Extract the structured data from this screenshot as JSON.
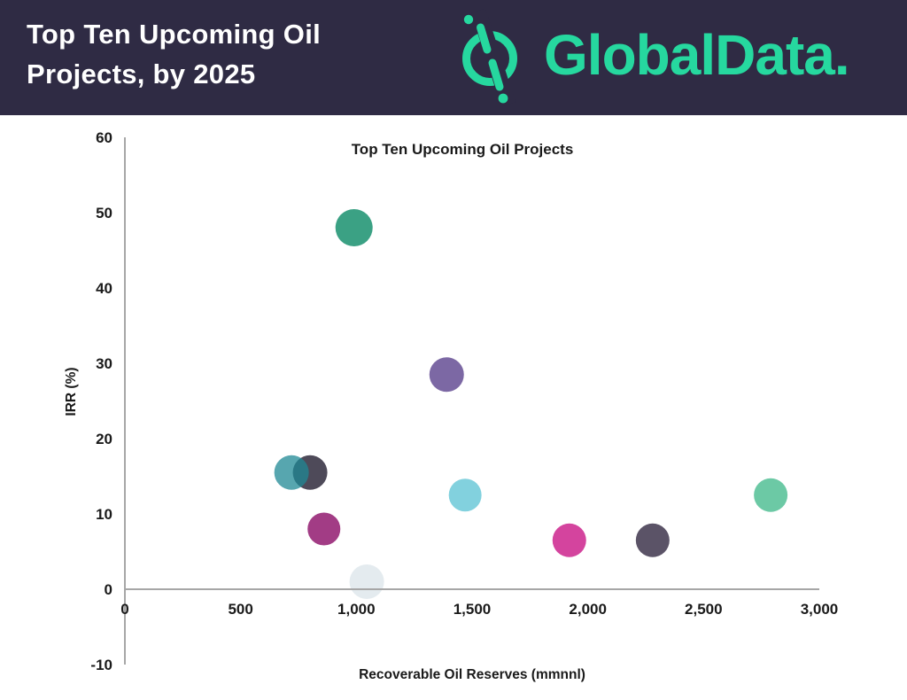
{
  "header": {
    "title_line1": "Top Ten Upcoming Oil",
    "title_line2": "Projects, by 2025",
    "logo_text": "GlobalData.",
    "colors": {
      "header_bg": "#2f2b44",
      "brand_green": "#26d89f",
      "header_text": "#ffffff"
    }
  },
  "chart_data": {
    "type": "scatter",
    "title": "Top Ten Upcoming Oil Projects",
    "xlabel": "Recoverable Oil Reserves (mmnnl)",
    "ylabel": "IRR (%)",
    "xlim": [
      0,
      3000
    ],
    "ylim": [
      -10,
      60
    ],
    "grid": false,
    "legend": "none",
    "axis_color": "#a6a6a6",
    "xticks": [
      0,
      500,
      1000,
      1500,
      2000,
      2500,
      3000
    ],
    "xtick_labels": [
      "0",
      "500",
      "1,000",
      "1,500",
      "2,000",
      "2,500",
      "3,000"
    ],
    "yticks": [
      60,
      50,
      40,
      30,
      20,
      10,
      0,
      -10
    ],
    "ytick_labels": [
      "60",
      "50",
      "40",
      "30",
      "20",
      "10",
      "0",
      "-10"
    ],
    "points": [
      {
        "x": 800,
        "y": 15.5,
        "r": 19.5,
        "color": "#4e4a59",
        "opacity": 1
      },
      {
        "x": 720,
        "y": 15.5,
        "r": 19.5,
        "color": "#1f8894",
        "opacity": 0.75
      },
      {
        "x": 990,
        "y": 48,
        "r": 21,
        "color": "#3ba184",
        "opacity": 1
      },
      {
        "x": 860,
        "y": 8,
        "r": 18.5,
        "color": "#a23c85",
        "opacity": 1
      },
      {
        "x": 1045,
        "y": 1,
        "r": 19.5,
        "color": "#dfe7ec",
        "opacity": 0.85
      },
      {
        "x": 1390,
        "y": 28.5,
        "r": 19.5,
        "color": "#7c68a4",
        "opacity": 1
      },
      {
        "x": 1470,
        "y": 12.5,
        "r": 18.5,
        "color": "#82d1de",
        "opacity": 1
      },
      {
        "x": 1920,
        "y": 6.5,
        "r": 19,
        "color": "#d4449e",
        "opacity": 1
      },
      {
        "x": 2280,
        "y": 6.5,
        "r": 19,
        "color": "#5b5367",
        "opacity": 1
      },
      {
        "x": 2790,
        "y": 12.5,
        "r": 19,
        "color": "#6cc9a5",
        "opacity": 1
      }
    ]
  }
}
